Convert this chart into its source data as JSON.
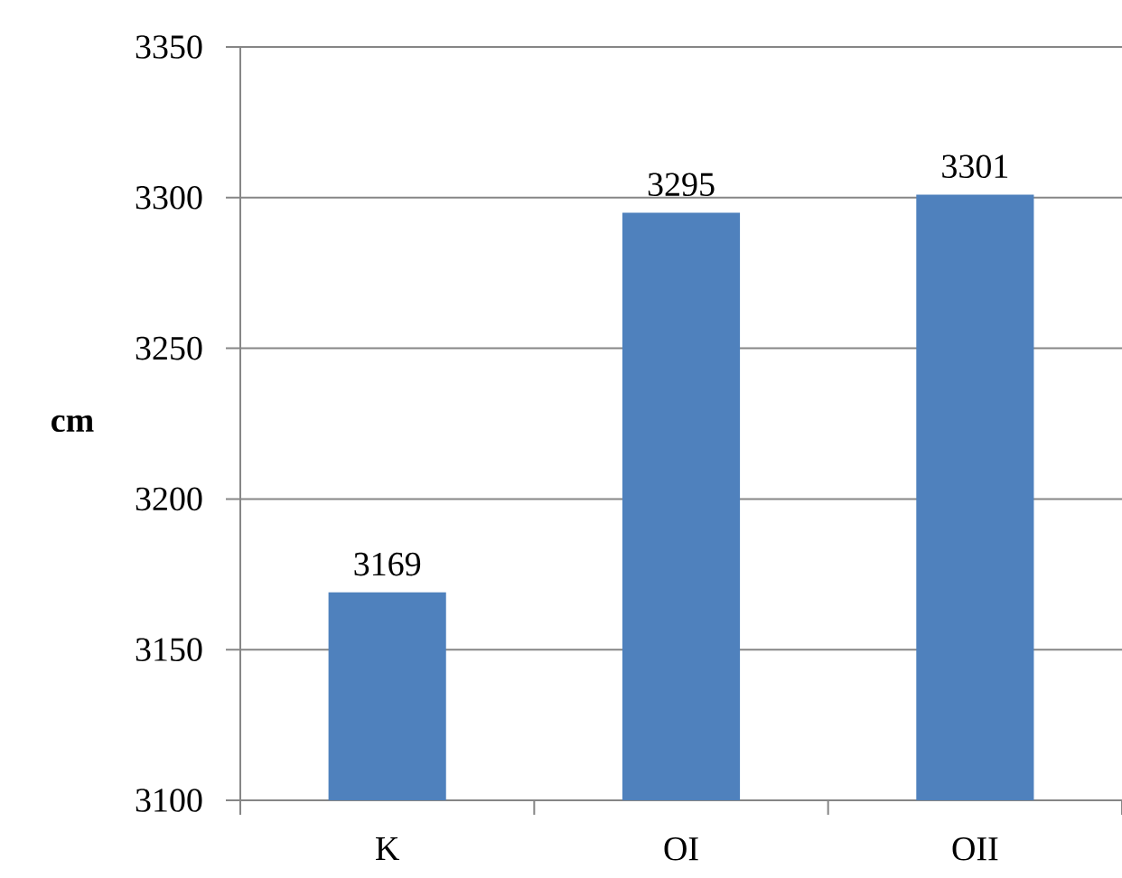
{
  "chart_data": {
    "type": "bar",
    "ylabel": "cm",
    "categories": [
      "K",
      "OI",
      "OII"
    ],
    "values": [
      3169,
      3295,
      3301
    ],
    "color": "#4f81bd",
    "ylim": [
      3100,
      3350
    ],
    "yticks": [
      3100,
      3150,
      3200,
      3250,
      3300,
      3350
    ],
    "grid": "y",
    "data_labels": true
  }
}
